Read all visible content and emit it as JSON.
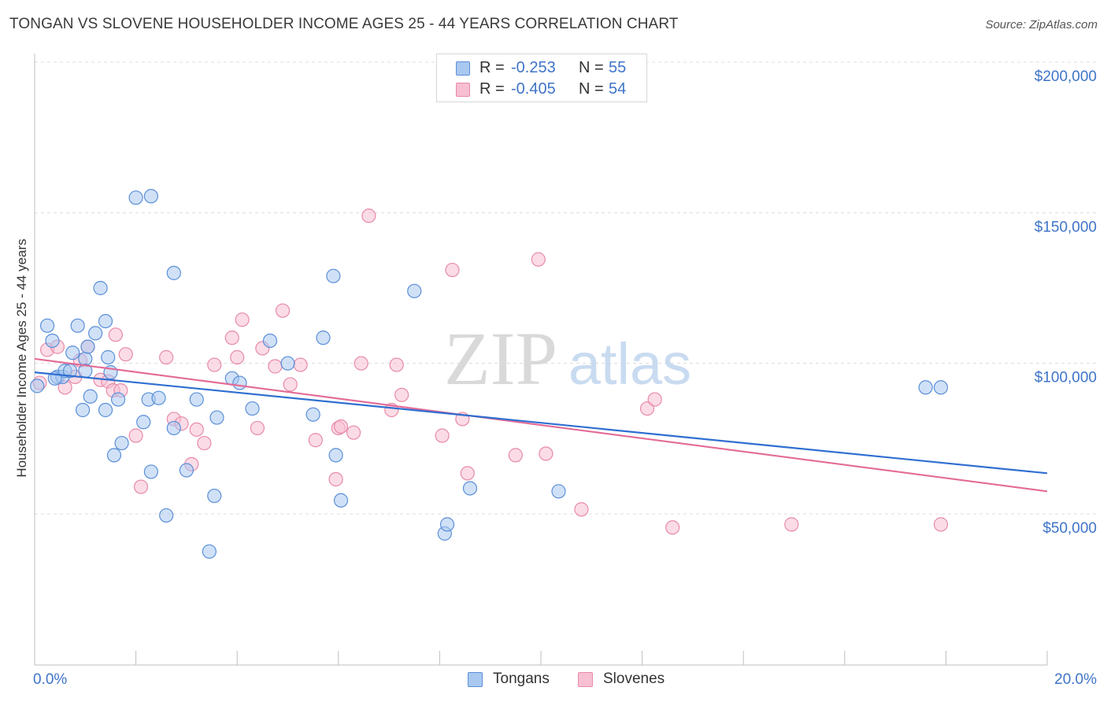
{
  "title": "TONGAN VS SLOVENE HOUSEHOLDER INCOME AGES 25 - 44 YEARS CORRELATION CHART",
  "source": "Source: ZipAtlas.com",
  "watermark": {
    "zip": "ZIP",
    "atlas": "atlas"
  },
  "legend": {
    "rows": [
      {
        "r_label": "R =",
        "r_value": "-0.253",
        "n_label": "N =",
        "n_value": "55",
        "color": "#a9c8f0",
        "border": "#5b8fd8"
      },
      {
        "r_label": "R =",
        "r_value": "-0.405",
        "n_label": "N =",
        "n_value": "54",
        "color": "#f7bfd1",
        "border": "#e88aa8"
      }
    ]
  },
  "bottom_legend": {
    "tongans": "Tongans",
    "slovenes": "Slovenes"
  },
  "colors": {
    "tongans_fill": "#a9c8f0",
    "tongans_stroke": "#5b8fd8",
    "tongans_line": "#2f6fd0",
    "slovenes_fill": "#f7bfd1",
    "slovenes_stroke": "#e88aa8",
    "slovenes_line": "#e36b97",
    "axis_text": "#3f74c8"
  },
  "chart_data": {
    "type": "scatter",
    "title": "TONGAN VS SLOVENE HOUSEHOLDER INCOME AGES 25 - 44 YEARS CORRELATION CHART",
    "xlabel": "",
    "ylabel": "Householder Income Ages 25 - 44 years",
    "xlim": [
      0,
      20
    ],
    "ylim": [
      5000,
      210000
    ],
    "x_tick_labels": [
      "0.0%",
      "20.0%"
    ],
    "y_ticks": [
      50000,
      100000,
      150000,
      200000
    ],
    "y_tick_labels": [
      "$50,000",
      "$100,000",
      "$150,000",
      "$200,000"
    ],
    "grid": true,
    "legend_position": "top-center",
    "series": [
      {
        "name": "Tongans",
        "r": -0.253,
        "n": 55,
        "trend": {
          "x": [
            0,
            20
          ],
          "y": [
            97000,
            63500
          ]
        },
        "points": [
          [
            0.05,
            92500
          ],
          [
            0.25,
            112500
          ],
          [
            0.35,
            107500
          ],
          [
            0.45,
            95500
          ],
          [
            0.55,
            95500
          ],
          [
            0.6,
            97500
          ],
          [
            0.7,
            97500
          ],
          [
            0.75,
            103500
          ],
          [
            0.85,
            112500
          ],
          [
            0.95,
            84500
          ],
          [
            1.0,
            101500
          ],
          [
            1.05,
            105500
          ],
          [
            1.1,
            89000
          ],
          [
            1.2,
            110000
          ],
          [
            1.3,
            125000
          ],
          [
            1.4,
            114000
          ],
          [
            1.45,
            102000
          ],
          [
            1.5,
            97000
          ],
          [
            1.57,
            69500
          ],
          [
            1.65,
            88000
          ],
          [
            1.72,
            73500
          ],
          [
            2.15,
            80500
          ],
          [
            2.25,
            88000
          ],
          [
            2.3,
            64000
          ],
          [
            2.6,
            49500
          ],
          [
            2.45,
            88500
          ],
          [
            2.75,
            78500
          ],
          [
            3.0,
            64500
          ],
          [
            3.2,
            88000
          ],
          [
            3.45,
            37500
          ],
          [
            3.55,
            56000
          ],
          [
            3.6,
            82000
          ],
          [
            3.9,
            95000
          ],
          [
            4.3,
            85000
          ],
          [
            4.05,
            93500
          ],
          [
            4.65,
            107500
          ],
          [
            5.0,
            100000
          ],
          [
            5.5,
            83000
          ],
          [
            5.7,
            108500
          ],
          [
            5.9,
            129000
          ],
          [
            5.95,
            69500
          ],
          [
            6.05,
            54500
          ],
          [
            7.5,
            124000
          ],
          [
            8.1,
            43500
          ],
          [
            8.15,
            46500
          ],
          [
            8.6,
            58500
          ],
          [
            10.35,
            57500
          ],
          [
            17.6,
            92000
          ],
          [
            17.9,
            92000
          ],
          [
            1.4,
            84500
          ],
          [
            2.0,
            155000
          ],
          [
            2.3,
            155500
          ],
          [
            2.75,
            130000
          ],
          [
            1.0,
            97500
          ],
          [
            0.4,
            95000
          ]
        ]
      },
      {
        "name": "Slovenes",
        "r": -0.405,
        "n": 54,
        "trend": {
          "x": [
            0,
            20
          ],
          "y": [
            101500,
            57500
          ]
        },
        "points": [
          [
            0.1,
            93500
          ],
          [
            0.25,
            104500
          ],
          [
            0.45,
            105500
          ],
          [
            0.6,
            92000
          ],
          [
            0.8,
            95500
          ],
          [
            0.9,
            101000
          ],
          [
            1.05,
            105500
          ],
          [
            1.3,
            94500
          ],
          [
            1.45,
            94000
          ],
          [
            1.55,
            91000
          ],
          [
            1.7,
            91000
          ],
          [
            1.8,
            103000
          ],
          [
            2.0,
            76000
          ],
          [
            2.1,
            59000
          ],
          [
            2.6,
            102000
          ],
          [
            2.75,
            81500
          ],
          [
            2.9,
            80000
          ],
          [
            3.1,
            66500
          ],
          [
            3.2,
            78000
          ],
          [
            3.35,
            73500
          ],
          [
            3.55,
            99500
          ],
          [
            3.9,
            108500
          ],
          [
            4.0,
            102000
          ],
          [
            4.1,
            114500
          ],
          [
            4.4,
            78500
          ],
          [
            4.5,
            105000
          ],
          [
            4.75,
            99000
          ],
          [
            4.9,
            117500
          ],
          [
            5.05,
            93000
          ],
          [
            5.25,
            99500
          ],
          [
            5.55,
            74500
          ],
          [
            5.95,
            61500
          ],
          [
            6.0,
            78500
          ],
          [
            6.05,
            79000
          ],
          [
            6.3,
            77000
          ],
          [
            6.45,
            100000
          ],
          [
            6.6,
            149000
          ],
          [
            7.05,
            84500
          ],
          [
            7.15,
            99500
          ],
          [
            7.25,
            89500
          ],
          [
            8.05,
            76000
          ],
          [
            8.25,
            131000
          ],
          [
            8.45,
            81500
          ],
          [
            8.55,
            63500
          ],
          [
            9.5,
            69500
          ],
          [
            9.95,
            134500
          ],
          [
            10.1,
            70000
          ],
          [
            10.8,
            51500
          ],
          [
            12.1,
            85000
          ],
          [
            12.25,
            88000
          ],
          [
            12.6,
            45500
          ],
          [
            14.95,
            46500
          ],
          [
            17.9,
            46500
          ],
          [
            1.6,
            109500
          ]
        ]
      }
    ]
  }
}
